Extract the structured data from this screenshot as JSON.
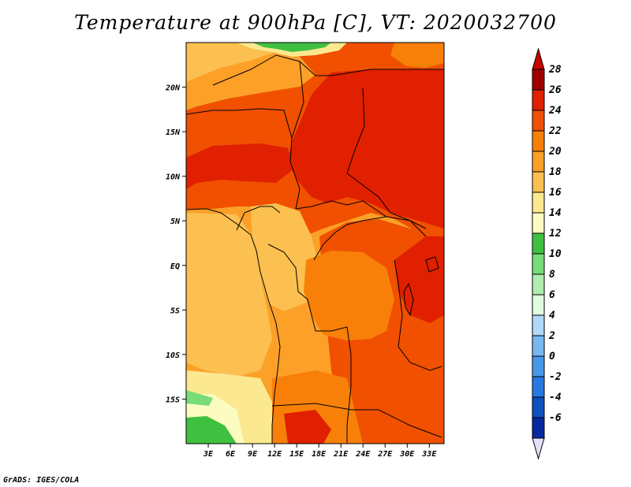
{
  "title": "Temperature at 900hPa [C], VT: 2020032700",
  "credit": "GrADS: IGES/COLA",
  "map": {
    "projection": "lat-lon",
    "lon_range": [
      0,
      35
    ],
    "lat_range": [
      -20,
      25
    ],
    "variable": "Temperature at 900hPa",
    "units": "C",
    "valid_time": "2020032700",
    "lat_ticks": [
      {
        "value": 20,
        "label": "20N"
      },
      {
        "value": 15,
        "label": "15N"
      },
      {
        "value": 10,
        "label": "10N"
      },
      {
        "value": 5,
        "label": "5N"
      },
      {
        "value": 0,
        "label": "EQ"
      },
      {
        "value": -5,
        "label": "5S"
      },
      {
        "value": -10,
        "label": "10S"
      },
      {
        "value": -15,
        "label": "15S"
      }
    ],
    "lon_ticks": [
      {
        "value": 3,
        "label": "3E"
      },
      {
        "value": 6,
        "label": "6E"
      },
      {
        "value": 9,
        "label": "9E"
      },
      {
        "value": 12,
        "label": "12E"
      },
      {
        "value": 15,
        "label": "15E"
      },
      {
        "value": 18,
        "label": "18E"
      },
      {
        "value": 21,
        "label": "21E"
      },
      {
        "value": 24,
        "label": "24E"
      },
      {
        "value": 27,
        "label": "27E"
      },
      {
        "value": 30,
        "label": "30E"
      },
      {
        "value": 33,
        "label": "33E"
      }
    ]
  },
  "colorbar": {
    "levels": [
      {
        "label": "28",
        "color": "#a00000"
      },
      {
        "label": "26",
        "color": "#e02000"
      },
      {
        "label": "24",
        "color": "#f05000"
      },
      {
        "label": "22",
        "color": "#f88008"
      },
      {
        "label": "20",
        "color": "#fca028"
      },
      {
        "label": "18",
        "color": "#fcc050"
      },
      {
        "label": "16",
        "color": "#fce890"
      },
      {
        "label": "14",
        "color": "#fcfcc0"
      },
      {
        "label": "12",
        "color": "#40c040"
      },
      {
        "label": "10",
        "color": "#78dc78"
      },
      {
        "label": "8",
        "color": "#b0ecb0"
      },
      {
        "label": "6",
        "color": "#e0fce0"
      },
      {
        "label": "4",
        "color": "#b0d8f8"
      },
      {
        "label": "2",
        "color": "#78b8f0"
      },
      {
        "label": "0",
        "color": "#4898e8"
      },
      {
        "label": "-2",
        "color": "#2878e0"
      },
      {
        "label": "-4",
        "color": "#1050c0"
      },
      {
        "label": "-6",
        "color": "#0828a0"
      }
    ],
    "below_color": "#000070",
    "above_color": "#c80000",
    "min_color": "#e0e0f8"
  }
}
